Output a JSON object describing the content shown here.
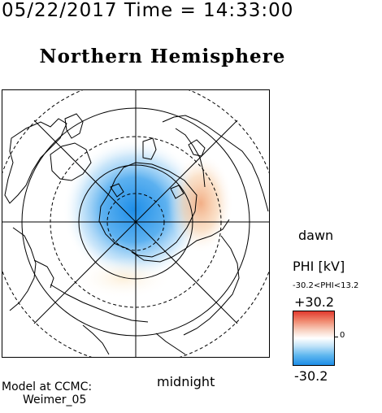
{
  "header": {
    "timestamp": "05/22/2017 Time = 14:33:00",
    "title": "Northern Hemisphere"
  },
  "map": {
    "labels": {
      "dawn": "dawn",
      "midnight": "midnight"
    },
    "potential_cells": [
      {
        "sign": "negative",
        "color": "#1e8ee8"
      },
      {
        "sign": "positive",
        "color": "#f0a070"
      }
    ]
  },
  "legend": {
    "title": "PHI [kV]",
    "range": "-30.2<PHI<13.2",
    "max": "+30.2",
    "zero": "0",
    "min": "-30.2",
    "colors": {
      "max": "#e23a2e",
      "mid": "#ffffff",
      "min": "#1e8ee8"
    }
  },
  "credit": {
    "line1": "Model at CCMC:",
    "line2": "Weimer_05"
  }
}
